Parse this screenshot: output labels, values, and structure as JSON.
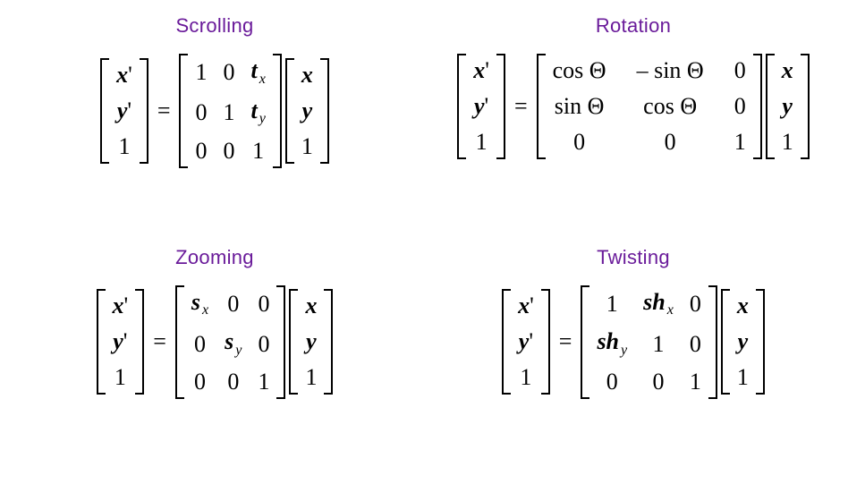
{
  "colors": {
    "title": "#6a1b9a",
    "text": "#000000",
    "background": "#ffffff"
  },
  "typography": {
    "title_fontsize": 22,
    "math_fontsize": 26,
    "title_family": "Helvetica",
    "math_family": "Times New Roman"
  },
  "layout": {
    "cols": 2,
    "rows": 2
  },
  "panels": {
    "scrolling": {
      "title": "Scrolling",
      "lhs": [
        "<span class='bi'>x</span>'",
        "<span class='bi'>y</span>'",
        "1"
      ],
      "matrix": [
        [
          "1",
          "0",
          "<span class='bi'>t</span><sub>x</sub>"
        ],
        [
          "0",
          "1",
          "<span class='bi'>t</span><sub>y</sub>"
        ],
        [
          "0",
          "0",
          "1"
        ]
      ],
      "rhs": [
        "<span class='bi'>x</span>",
        "<span class='bi'>y</span>",
        "1"
      ]
    },
    "rotation": {
      "title": "Rotation",
      "lhs": [
        "<span class='bi'>x</span>'",
        "<span class='bi'>y</span>'",
        "1"
      ],
      "matrix": [
        [
          "cos Θ",
          "– sin Θ",
          "0"
        ],
        [
          "sin Θ",
          "cos Θ",
          "0"
        ],
        [
          "0",
          "0",
          "1"
        ]
      ],
      "rhs": [
        "<span class='bi'>x</span>",
        "<span class='bi'>y</span>",
        "1"
      ]
    },
    "zooming": {
      "title": "Zooming",
      "lhs": [
        "<span class='bi'>x</span>'",
        "<span class='bi'>y</span>'",
        "1"
      ],
      "matrix": [
        [
          "<span class='bi'>s</span><sub>x</sub>",
          "0",
          "0"
        ],
        [
          "0",
          "<span class='bi'>s</span><sub>y</sub>",
          "0"
        ],
        [
          "0",
          "0",
          "1"
        ]
      ],
      "rhs": [
        "<span class='bi'>x</span>",
        "<span class='bi'>y</span>",
        "1"
      ]
    },
    "twisting": {
      "title": "Twisting",
      "lhs": [
        "<span class='bi'>x</span>'",
        "<span class='bi'>y</span>'",
        "1"
      ],
      "matrix": [
        [
          "1",
          "<span class='bi'>sh</span><sub>x</sub>",
          "0"
        ],
        [
          "<span class='bi'>sh</span><sub>y</sub>",
          "1",
          "0"
        ],
        [
          "0",
          "0",
          "1"
        ]
      ],
      "rhs": [
        "<span class='bi'>x</span>",
        "<span class='bi'>y</span>",
        "1"
      ]
    }
  }
}
